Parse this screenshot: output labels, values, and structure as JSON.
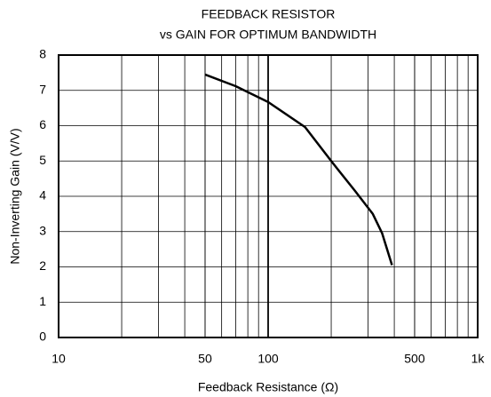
{
  "chart_data": {
    "type": "line",
    "title": "FEEDBACK RESISTOR",
    "subtitle": "vs GAIN FOR OPTIMUM BANDWIDTH",
    "x_label": "Feedback Resistance (Ω)",
    "y_label": "Non-Inverting Gain (V/V)",
    "x_scale": "log",
    "grid": true,
    "xlim": [
      10,
      1000
    ],
    "xticks": [
      10,
      50,
      100,
      500,
      {
        "value": 1000,
        "label": "1k"
      }
    ],
    "ylim": [
      0,
      8
    ],
    "yticks": [
      0,
      1,
      2,
      3,
      4,
      5,
      6,
      7,
      8
    ],
    "series": [
      {
        "color": "#000000",
        "x": [
          50,
          70,
          100,
          150,
          200,
          260,
          316,
          350,
          390
        ],
        "values": [
          7.45,
          7.12,
          6.67,
          5.96,
          5.0,
          4.15,
          3.5,
          2.95,
          2.05
        ]
      }
    ]
  }
}
